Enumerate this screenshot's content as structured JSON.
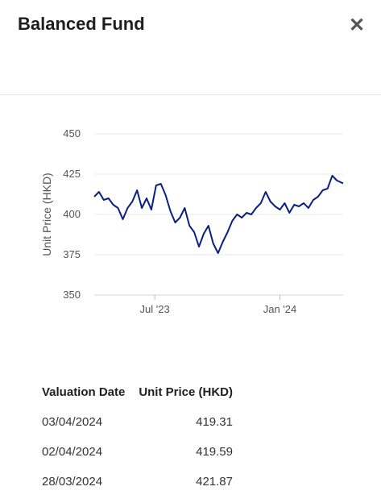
{
  "dialog": {
    "title": "Balanced Fund",
    "close_glyph": "✕"
  },
  "chart_data": {
    "type": "line",
    "ylabel": "Unit Price (HKD)",
    "ylim": [
      350,
      450
    ],
    "yticks": [
      350,
      375,
      400,
      425,
      450
    ],
    "xticks": [
      {
        "label": "Jul '23",
        "date": "2023-07-01"
      },
      {
        "label": "Jan '24",
        "date": "2024-01-01"
      }
    ],
    "xlim": [
      "2023-04-03",
      "2024-04-03"
    ],
    "grid": true,
    "color": "#0a2080",
    "series": [
      {
        "x": [
          "2023-04-03",
          "2023-04-10",
          "2023-04-17",
          "2023-04-24",
          "2023-05-01",
          "2023-05-08",
          "2023-05-15",
          "2023-05-22",
          "2023-05-29",
          "2023-06-05",
          "2023-06-12",
          "2023-06-19",
          "2023-06-26",
          "2023-07-03",
          "2023-07-10",
          "2023-07-17",
          "2023-07-24",
          "2023-07-31",
          "2023-08-07",
          "2023-08-14",
          "2023-08-21",
          "2023-08-28",
          "2023-09-04",
          "2023-09-11",
          "2023-09-18",
          "2023-09-25",
          "2023-10-02",
          "2023-10-09",
          "2023-10-16",
          "2023-10-23",
          "2023-10-30",
          "2023-11-06",
          "2023-11-13",
          "2023-11-20",
          "2023-11-27",
          "2023-12-04",
          "2023-12-11",
          "2023-12-18",
          "2023-12-25",
          "2024-01-01",
          "2024-01-08",
          "2024-01-15",
          "2024-01-22",
          "2024-01-29",
          "2024-02-05",
          "2024-02-12",
          "2024-02-19",
          "2024-02-26",
          "2024-03-04",
          "2024-03-11",
          "2024-03-18",
          "2024-03-25",
          "2024-04-03"
        ],
        "y": [
          411,
          414,
          409,
          410,
          406,
          404,
          397,
          404,
          408,
          415,
          404,
          410,
          403,
          418,
          419,
          412,
          402,
          395,
          398,
          404,
          393,
          389,
          380,
          388,
          393,
          382,
          376,
          383,
          389,
          396,
          400,
          398,
          401,
          400,
          404,
          407,
          414,
          408,
          405,
          403,
          407,
          401,
          406,
          405,
          407,
          404,
          409,
          411,
          415,
          416,
          424,
          421,
          419.31
        ]
      }
    ]
  },
  "table": {
    "headers": [
      "Valuation Date",
      "Unit Price (HKD)"
    ],
    "rows": [
      {
        "date": "03/04/2024",
        "price": "419.31"
      },
      {
        "date": "02/04/2024",
        "price": "419.59"
      },
      {
        "date": "28/03/2024",
        "price": "421.87"
      }
    ]
  }
}
